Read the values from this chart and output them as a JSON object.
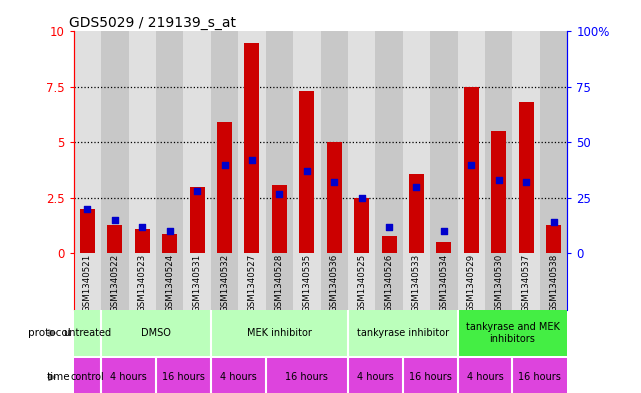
{
  "title": "GDS5029 / 219139_s_at",
  "samples": [
    "GSM1340521",
    "GSM1340522",
    "GSM1340523",
    "GSM1340524",
    "GSM1340531",
    "GSM1340532",
    "GSM1340527",
    "GSM1340528",
    "GSM1340535",
    "GSM1340536",
    "GSM1340525",
    "GSM1340526",
    "GSM1340533",
    "GSM1340534",
    "GSM1340529",
    "GSM1340530",
    "GSM1340537",
    "GSM1340538"
  ],
  "count_values": [
    2.0,
    1.3,
    1.1,
    0.9,
    3.0,
    5.9,
    9.5,
    3.1,
    7.3,
    5.0,
    2.5,
    0.8,
    3.6,
    0.5,
    7.5,
    5.5,
    6.8,
    1.3
  ],
  "percentile_values": [
    20,
    15,
    12,
    10,
    28,
    40,
    42,
    27,
    37,
    32,
    25,
    12,
    30,
    10,
    40,
    33,
    32,
    14
  ],
  "ylim_left": [
    0,
    10
  ],
  "ylim_right": [
    0,
    100
  ],
  "yticks_left": [
    0,
    2.5,
    5.0,
    7.5,
    10
  ],
  "yticks_right": [
    0,
    25,
    50,
    75,
    100
  ],
  "bar_color": "#cc0000",
  "percentile_color": "#0000cc",
  "bar_width": 0.55,
  "col_bg_even": "#e0e0e0",
  "col_bg_odd": "#c8c8c8",
  "protocol_bg_light": "#bbffbb",
  "protocol_bg_bright": "#44ee44",
  "time_bg": "#dd44dd",
  "protocols": [
    {
      "label": "untreated",
      "start": 0,
      "end": 1
    },
    {
      "label": "DMSO",
      "start": 1,
      "end": 5
    },
    {
      "label": "MEK inhibitor",
      "start": 5,
      "end": 10
    },
    {
      "label": "tankyrase inhibitor",
      "start": 10,
      "end": 14
    },
    {
      "label": "tankyrase and MEK\ninhibitors",
      "start": 14,
      "end": 18,
      "bright": true
    }
  ],
  "times": [
    {
      "label": "control",
      "start": 0,
      "end": 1
    },
    {
      "label": "4 hours",
      "start": 1,
      "end": 3
    },
    {
      "label": "16 hours",
      "start": 3,
      "end": 5
    },
    {
      "label": "4 hours",
      "start": 5,
      "end": 7
    },
    {
      "label": "16 hours",
      "start": 7,
      "end": 10
    },
    {
      "label": "4 hours",
      "start": 10,
      "end": 12
    },
    {
      "label": "16 hours",
      "start": 12,
      "end": 14
    },
    {
      "label": "4 hours",
      "start": 14,
      "end": 16
    },
    {
      "label": "16 hours",
      "start": 16,
      "end": 18
    }
  ]
}
